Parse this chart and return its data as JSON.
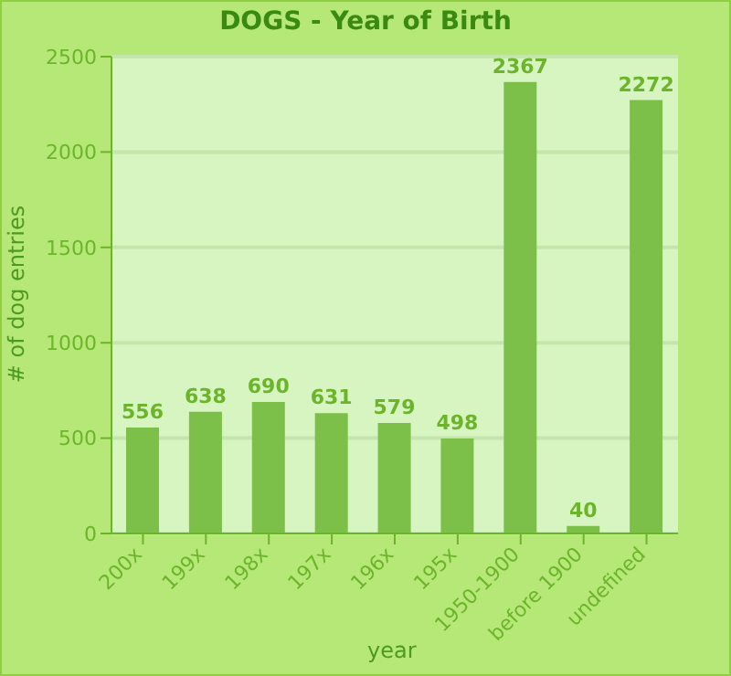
{
  "chart_data": {
    "type": "bar",
    "title": "DOGS - Year of Birth",
    "xlabel": "year",
    "ylabel": "# of dog entries",
    "categories": [
      "200x",
      "199x",
      "198x",
      "197x",
      "196x",
      "195x",
      "1950-1900",
      "before 1900",
      "undefined"
    ],
    "values": [
      556,
      638,
      690,
      631,
      579,
      498,
      2367,
      40,
      2272
    ],
    "color": "#7cc04a",
    "ylim": [
      0,
      2500
    ],
    "yticks": [
      0,
      500,
      1000,
      1500,
      2000,
      2500
    ],
    "grid": "y",
    "data_labels": true
  }
}
